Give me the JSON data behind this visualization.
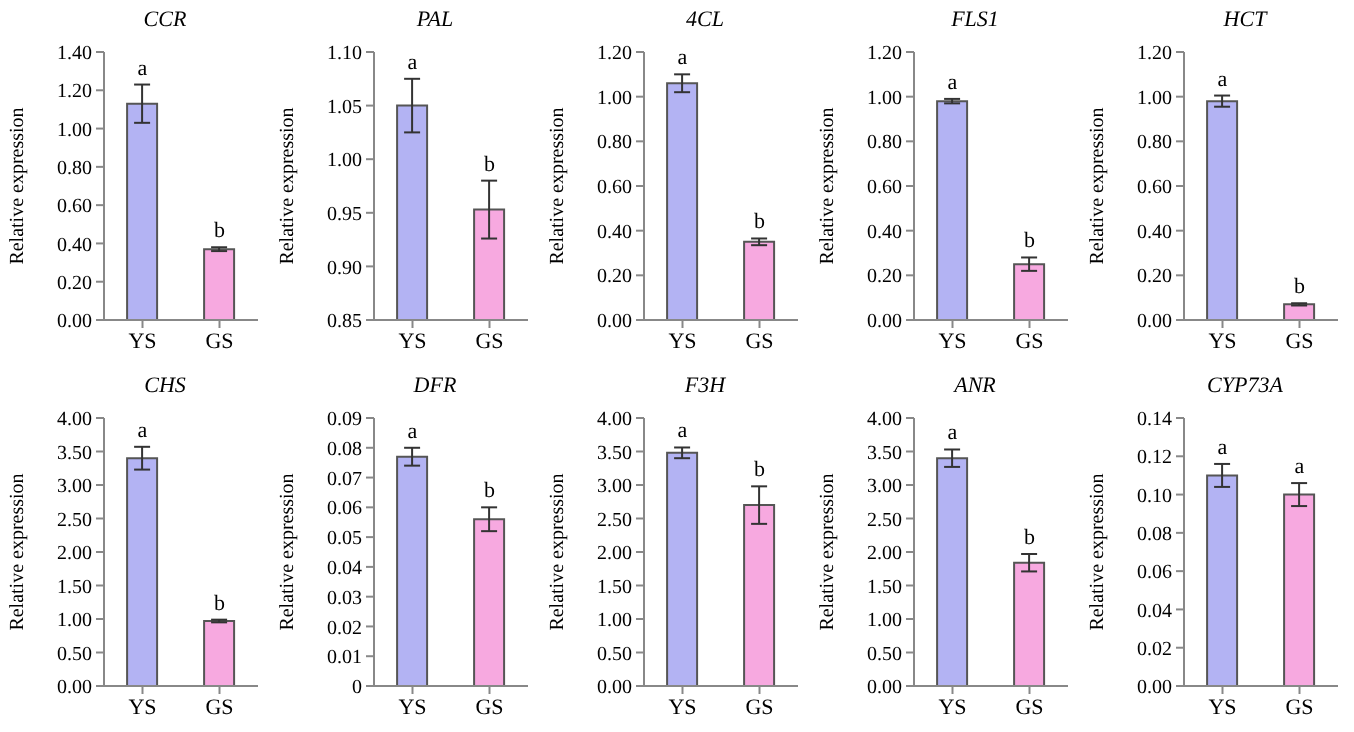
{
  "chart_data": [
    {
      "type": "bar",
      "title": "CCR",
      "ylabel": "Relative expression",
      "categories": [
        "YS",
        "GS"
      ],
      "values": [
        1.13,
        0.37
      ],
      "colors": [
        "#b3b3f3",
        "#f7a9e0"
      ],
      "errors": [
        0.1,
        0.01
      ],
      "ylim": [
        0,
        1.4
      ],
      "yticks": [
        {
          "value": 0,
          "label": "0.00"
        },
        {
          "value": 0.2,
          "label": "0.20"
        },
        {
          "value": 0.4,
          "label": "0.40"
        },
        {
          "value": 0.6,
          "label": "0.60"
        },
        {
          "value": 0.8,
          "label": "0.80"
        },
        {
          "value": 1,
          "label": "1.00"
        },
        {
          "value": 1.2,
          "label": "1.20"
        },
        {
          "value": 1.4,
          "label": "1.40"
        }
      ],
      "annotations": [
        {
          "text": "a",
          "x": "YS",
          "y": 1.13
        },
        {
          "text": "b",
          "x": "GS",
          "y": 0.37
        }
      ]
    },
    {
      "type": "bar",
      "title": "PAL",
      "ylabel": "Relative expression",
      "categories": [
        "YS",
        "GS"
      ],
      "values": [
        1.05,
        0.953
      ],
      "colors": [
        "#b3b3f3",
        "#f7a9e0"
      ],
      "errors": [
        0.025,
        0.027
      ],
      "ylim": [
        0.85,
        1.1
      ],
      "yticks": [
        {
          "value": 0.85,
          "label": "0.85"
        },
        {
          "value": 0.9,
          "label": "0.90"
        },
        {
          "value": 0.95,
          "label": "0.95"
        },
        {
          "value": 1,
          "label": "1.00"
        },
        {
          "value": 1.05,
          "label": "1.05"
        },
        {
          "value": 1.1,
          "label": "1.10"
        }
      ],
      "annotations": [
        {
          "text": "a",
          "x": "YS",
          "y": 1.05
        },
        {
          "text": "b",
          "x": "GS",
          "y": 0.953
        }
      ]
    },
    {
      "type": "bar",
      "title": "4CL",
      "ylabel": "Relative expression",
      "categories": [
        "YS",
        "GS"
      ],
      "values": [
        1.06,
        0.35
      ],
      "colors": [
        "#b3b3f3",
        "#f7a9e0"
      ],
      "errors": [
        0.04,
        0.015
      ],
      "ylim": [
        0,
        1.2
      ],
      "yticks": [
        {
          "value": 0,
          "label": "0.00"
        },
        {
          "value": 0.2,
          "label": "0.20"
        },
        {
          "value": 0.4,
          "label": "0.40"
        },
        {
          "value": 0.6,
          "label": "0.60"
        },
        {
          "value": 0.8,
          "label": "0.80"
        },
        {
          "value": 1,
          "label": "1.00"
        },
        {
          "value": 1.2,
          "label": "1.20"
        }
      ],
      "annotations": [
        {
          "text": "a",
          "x": "YS",
          "y": 1.06
        },
        {
          "text": "b",
          "x": "GS",
          "y": 0.35
        }
      ]
    },
    {
      "type": "bar",
      "title": "FLS1",
      "ylabel": "Relative expression",
      "categories": [
        "YS",
        "GS"
      ],
      "values": [
        0.98,
        0.25
      ],
      "colors": [
        "#b3b3f3",
        "#f7a9e0"
      ],
      "errors": [
        0.01,
        0.03
      ],
      "ylim": [
        0,
        1.2
      ],
      "yticks": [
        {
          "value": 0,
          "label": "0.00"
        },
        {
          "value": 0.2,
          "label": "0.20"
        },
        {
          "value": 0.4,
          "label": "0.40"
        },
        {
          "value": 0.6,
          "label": "0.60"
        },
        {
          "value": 0.8,
          "label": "0.80"
        },
        {
          "value": 1,
          "label": "1.00"
        },
        {
          "value": 1.2,
          "label": "1.20"
        }
      ],
      "annotations": [
        {
          "text": "a",
          "x": "YS",
          "y": 0.98
        },
        {
          "text": "b",
          "x": "GS",
          "y": 0.25
        }
      ]
    },
    {
      "type": "bar",
      "title": "HCT",
      "ylabel": "Relative expression",
      "categories": [
        "YS",
        "GS"
      ],
      "values": [
        0.98,
        0.07
      ],
      "colors": [
        "#b3b3f3",
        "#f7a9e0"
      ],
      "errors": [
        0.025,
        0.005
      ],
      "ylim": [
        0,
        1.2
      ],
      "yticks": [
        {
          "value": 0,
          "label": "0.00"
        },
        {
          "value": 0.2,
          "label": "0.20"
        },
        {
          "value": 0.4,
          "label": "0.40"
        },
        {
          "value": 0.6,
          "label": "0.60"
        },
        {
          "value": 0.8,
          "label": "0.80"
        },
        {
          "value": 1,
          "label": "1.00"
        },
        {
          "value": 1.2,
          "label": "1.20"
        }
      ],
      "annotations": [
        {
          "text": "a",
          "x": "YS",
          "y": 0.98
        },
        {
          "text": "b",
          "x": "GS",
          "y": 0.07
        }
      ]
    },
    {
      "type": "bar",
      "title": "CHS",
      "ylabel": "Relative expression",
      "categories": [
        "YS",
        "GS"
      ],
      "values": [
        3.4,
        0.97
      ],
      "colors": [
        "#b3b3f3",
        "#f7a9e0"
      ],
      "errors": [
        0.17,
        0.02
      ],
      "ylim": [
        0,
        4
      ],
      "yticks": [
        {
          "value": 0,
          "label": "0.00"
        },
        {
          "value": 0.5,
          "label": "0.50"
        },
        {
          "value": 1,
          "label": "1.00"
        },
        {
          "value": 1.5,
          "label": "1.50"
        },
        {
          "value": 2,
          "label": "2.00"
        },
        {
          "value": 2.5,
          "label": "2.50"
        },
        {
          "value": 3,
          "label": "3.00"
        },
        {
          "value": 3.5,
          "label": "3.50"
        },
        {
          "value": 4,
          "label": "4.00"
        }
      ],
      "annotations": [
        {
          "text": "a",
          "x": "YS",
          "y": 3.4
        },
        {
          "text": "b",
          "x": "GS",
          "y": 0.97
        }
      ]
    },
    {
      "type": "bar",
      "title": "DFR",
      "ylabel": "Relative expression",
      "categories": [
        "YS",
        "GS"
      ],
      "values": [
        0.077,
        0.056
      ],
      "colors": [
        "#b3b3f3",
        "#f7a9e0"
      ],
      "errors": [
        0.003,
        0.004
      ],
      "ylim": [
        0,
        0.09
      ],
      "yticks": [
        0,
        0.01,
        0.02,
        0.03,
        0.04,
        0.05,
        0.06,
        0.07,
        0.08,
        0.09
      ],
      "annotations": [
        {
          "text": "a",
          "x": "YS",
          "y": 0.077
        },
        {
          "text": "b",
          "x": "GS",
          "y": 0.056
        }
      ]
    },
    {
      "type": "bar",
      "title": "F3H",
      "ylabel": "Relative expression",
      "categories": [
        "YS",
        "GS"
      ],
      "values": [
        3.48,
        2.7
      ],
      "colors": [
        "#b3b3f3",
        "#f7a9e0"
      ],
      "errors": [
        0.08,
        0.28
      ],
      "ylim": [
        0,
        4
      ],
      "yticks": [
        {
          "value": 0,
          "label": "0.00"
        },
        {
          "value": 0.5,
          "label": "0.50"
        },
        {
          "value": 1,
          "label": "1.00"
        },
        {
          "value": 1.5,
          "label": "1.50"
        },
        {
          "value": 2,
          "label": "2.00"
        },
        {
          "value": 2.5,
          "label": "2.50"
        },
        {
          "value": 3,
          "label": "3.00"
        },
        {
          "value": 3.5,
          "label": "3.50"
        },
        {
          "value": 4,
          "label": "4.00"
        }
      ],
      "annotations": [
        {
          "text": "a",
          "x": "YS",
          "y": 3.48
        },
        {
          "text": "b",
          "x": "GS",
          "y": 2.7
        }
      ]
    },
    {
      "type": "bar",
      "title": "ANR",
      "ylabel": "Relative expression",
      "categories": [
        "YS",
        "GS"
      ],
      "values": [
        3.4,
        1.84
      ],
      "colors": [
        "#b3b3f3",
        "#f7a9e0"
      ],
      "errors": [
        0.13,
        0.13
      ],
      "ylim": [
        0,
        4
      ],
      "yticks": [
        {
          "value": 0,
          "label": "0.00"
        },
        {
          "value": 0.5,
          "label": "0.50"
        },
        {
          "value": 1,
          "label": "1.00"
        },
        {
          "value": 1.5,
          "label": "1.50"
        },
        {
          "value": 2,
          "label": "2.00"
        },
        {
          "value": 2.5,
          "label": "2.50"
        },
        {
          "value": 3,
          "label": "3.00"
        },
        {
          "value": 3.5,
          "label": "3.50"
        },
        {
          "value": 4,
          "label": "4.00"
        }
      ],
      "annotations": [
        {
          "text": "a",
          "x": "YS",
          "y": 3.4
        },
        {
          "text": "b",
          "x": "GS",
          "y": 1.84
        }
      ]
    },
    {
      "type": "bar",
      "title": "CYP73A",
      "ylabel": "Relative expression",
      "categories": [
        "YS",
        "GS"
      ],
      "values": [
        0.11,
        0.1
      ],
      "colors": [
        "#b3b3f3",
        "#f7a9e0"
      ],
      "errors": [
        0.006,
        0.006
      ],
      "ylim": [
        0,
        0.14
      ],
      "yticks": [
        {
          "value": 0,
          "label": "0.00"
        },
        {
          "value": 0.02,
          "label": "0.02"
        },
        {
          "value": 0.04,
          "label": "0.04"
        },
        {
          "value": 0.06,
          "label": "0.06"
        },
        {
          "value": 0.08,
          "label": "0.08"
        },
        {
          "value": 0.1,
          "label": "0.10"
        },
        {
          "value": 0.12,
          "label": "0.12"
        },
        {
          "value": 0.14,
          "label": "0.14"
        }
      ],
      "annotations": [
        {
          "text": "a",
          "x": "YS",
          "y": 0.11
        },
        {
          "text": "a",
          "x": "GS",
          "y": 0.1
        }
      ]
    }
  ]
}
